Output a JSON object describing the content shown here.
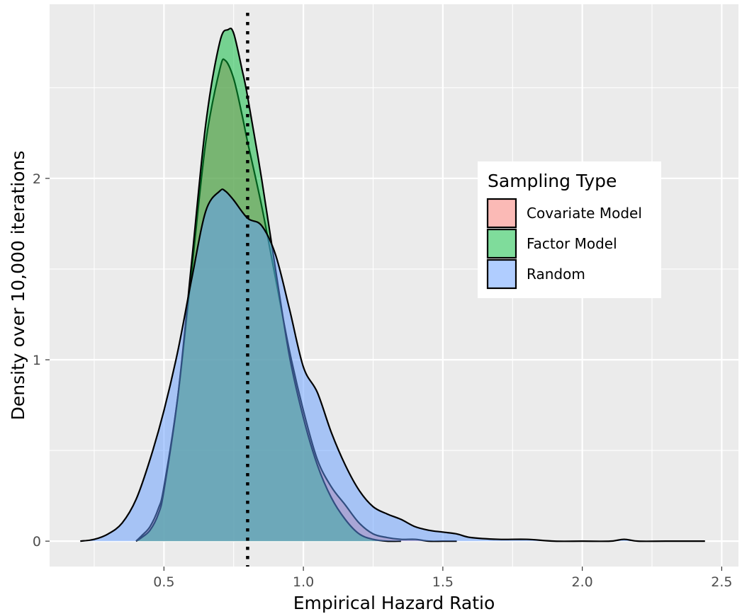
{
  "chart_data": {
    "type": "area",
    "title": "",
    "xlabel": "Empirical Hazard Ratio",
    "ylabel": "Density over 10,000 iterations",
    "xlim": [
      0.09,
      2.56
    ],
    "ylim": [
      -0.14,
      2.96
    ],
    "x_ticks": [
      0.5,
      1.0,
      1.5,
      2.0,
      2.5
    ],
    "x_tick_labels": [
      "0.5",
      "1.0",
      "1.5",
      "2.0",
      "2.5"
    ],
    "y_ticks": [
      0,
      1,
      2
    ],
    "y_tick_labels": [
      "0",
      "1",
      "2"
    ],
    "grid": true,
    "reference_line": {
      "x": 0.8,
      "style": "dotted",
      "color": "#000000"
    },
    "legend": {
      "title": "Sampling Type",
      "position": "right"
    },
    "series": [
      {
        "name": "Covariate Model",
        "color": "#F8766D",
        "x": [
          0.4,
          0.42,
          0.45,
          0.48,
          0.5,
          0.55,
          0.6,
          0.65,
          0.7,
          0.72,
          0.75,
          0.78,
          0.8,
          0.85,
          0.9,
          0.95,
          1.0,
          1.05,
          1.1,
          1.15,
          1.2,
          1.25,
          1.3,
          1.35,
          1.4,
          1.45,
          1.5,
          1.55
        ],
        "values": [
          0.0,
          0.03,
          0.08,
          0.18,
          0.3,
          0.8,
          1.5,
          2.2,
          2.6,
          2.65,
          2.55,
          2.35,
          2.2,
          1.85,
          1.45,
          1.05,
          0.72,
          0.45,
          0.3,
          0.2,
          0.1,
          0.04,
          0.02,
          0.01,
          0.01,
          0.0,
          0.0,
          0.0
        ]
      },
      {
        "name": "Factor Model",
        "color": "#00BA38",
        "x": [
          0.4,
          0.42,
          0.45,
          0.48,
          0.5,
          0.55,
          0.6,
          0.65,
          0.7,
          0.73,
          0.75,
          0.78,
          0.8,
          0.85,
          0.9,
          0.95,
          1.0,
          1.05,
          1.1,
          1.15,
          1.2,
          1.25,
          1.3,
          1.35
        ],
        "values": [
          0.0,
          0.02,
          0.06,
          0.15,
          0.28,
          0.8,
          1.55,
          2.3,
          2.75,
          2.82,
          2.8,
          2.6,
          2.45,
          2.0,
          1.5,
          1.02,
          0.68,
          0.42,
          0.24,
          0.12,
          0.04,
          0.01,
          0.0,
          0.0
        ]
      },
      {
        "name": "Random",
        "color": "#619CFF",
        "x": [
          0.2,
          0.25,
          0.3,
          0.35,
          0.4,
          0.45,
          0.5,
          0.55,
          0.6,
          0.65,
          0.7,
          0.72,
          0.75,
          0.8,
          0.85,
          0.9,
          0.95,
          1.0,
          1.05,
          1.1,
          1.15,
          1.2,
          1.25,
          1.3,
          1.35,
          1.4,
          1.45,
          1.5,
          1.55,
          1.6,
          1.7,
          1.8,
          1.9,
          2.0,
          2.1,
          2.15,
          2.2,
          2.3,
          2.44
        ],
        "values": [
          0.0,
          0.01,
          0.04,
          0.1,
          0.23,
          0.45,
          0.72,
          1.05,
          1.45,
          1.82,
          1.93,
          1.93,
          1.88,
          1.78,
          1.74,
          1.58,
          1.28,
          0.96,
          0.82,
          0.6,
          0.42,
          0.28,
          0.19,
          0.15,
          0.12,
          0.08,
          0.06,
          0.05,
          0.04,
          0.02,
          0.01,
          0.01,
          0.0,
          0.0,
          0.0,
          0.01,
          0.0,
          0.0,
          0.0
        ]
      }
    ]
  }
}
